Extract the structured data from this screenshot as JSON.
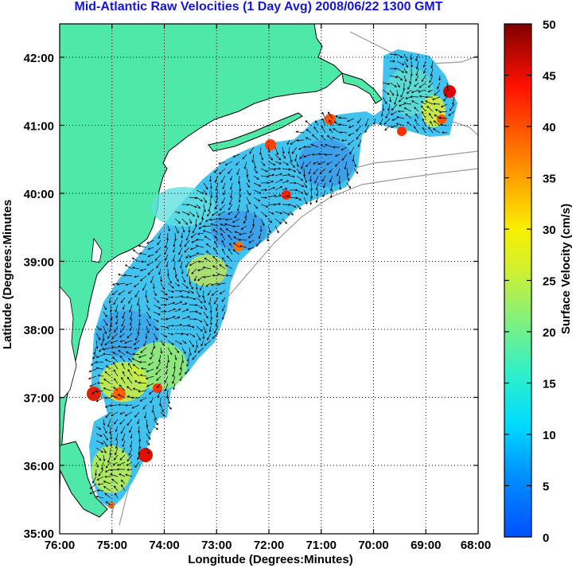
{
  "title": "Mid-Atlantic Raw Velocities (1 Day Avg) 2008/06/22 1300 GMT",
  "xlabel": "Longitude (Degrees:Minutes)",
  "ylabel": "Latitude (Degrees:Minutes",
  "colorbar_label": "Surface Velocity (cm/s)",
  "x_ticks": [
    "76:00",
    "75:00",
    "74:00",
    "73:00",
    "72:00",
    "71:00",
    "70:00",
    "69:00",
    "68:00"
  ],
  "y_ticks": [
    "42:00",
    "41:00",
    "40:00",
    "39:00",
    "38:00",
    "37:00",
    "36:00",
    "35:00"
  ],
  "colorbar_ticks": [
    "50",
    "45",
    "40",
    "35",
    "30",
    "25",
    "20",
    "15",
    "10",
    "5",
    "0"
  ],
  "colors": {
    "land": "#4ee8a8",
    "water": "#ffffff",
    "title": "#1515e0",
    "vector": "#000000",
    "colormap": [
      "#0050ff",
      "#00c8ff",
      "#30f0c0",
      "#90f060",
      "#f0f000",
      "#ffa000",
      "#ff2000",
      "#8a0000"
    ]
  },
  "chart_data": {
    "type": "vector-field-map",
    "x_range_deg_lon": [
      -76,
      -68
    ],
    "y_range_deg_lat": [
      35,
      42.5
    ],
    "color_range_cm_s": [
      0,
      50
    ],
    "grid": true
  }
}
